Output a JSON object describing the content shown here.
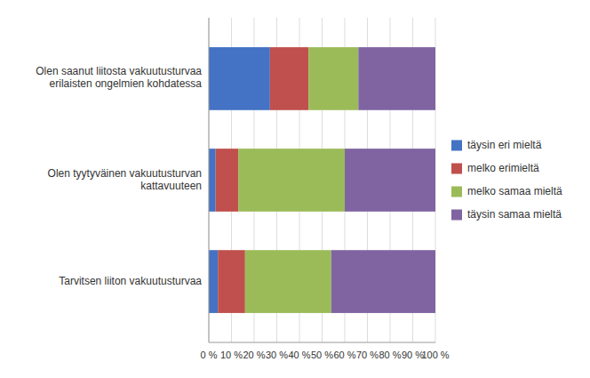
{
  "chart_data": {
    "type": "bar",
    "orientation": "horizontal",
    "stacked": true,
    "categories": [
      "Tarvitsen liiton vakuutusturvaa",
      "Olen tyytyväinen vakuutusturvan\nkattavuuteen",
      "Olen saanut liitosta vakuutusturvaa\nerilaisten ongelmien kohdatessa"
    ],
    "series": [
      {
        "name": "täysin eri mieltä",
        "color": "#4472C4",
        "values": [
          4,
          3,
          27
        ]
      },
      {
        "name": "melko erimieltä",
        "color": "#C0504D",
        "values": [
          12,
          10,
          17
        ]
      },
      {
        "name": "melko samaa mieltä",
        "color": "#9BBB59",
        "values": [
          38,
          47,
          22
        ]
      },
      {
        "name": "täysin samaa mieltä",
        "color": "#8064A2",
        "values": [
          46,
          40,
          34
        ]
      }
    ],
    "xlim": [
      0,
      100
    ],
    "xticks": [
      {
        "value": 0,
        "label": "0 %"
      },
      {
        "value": 10,
        "label": "10 %"
      },
      {
        "value": 20,
        "label": "20 %"
      },
      {
        "value": 30,
        "label": "30 %"
      },
      {
        "value": 40,
        "label": "40 %"
      },
      {
        "value": 50,
        "label": "50 %"
      },
      {
        "value": 60,
        "label": "60 %"
      },
      {
        "value": 70,
        "label": "70 %"
      },
      {
        "value": 80,
        "label": "80 %"
      },
      {
        "value": 90,
        "label": "90 %"
      },
      {
        "value": 100,
        "label": "100 %"
      }
    ],
    "grid": true,
    "legend": "right"
  }
}
